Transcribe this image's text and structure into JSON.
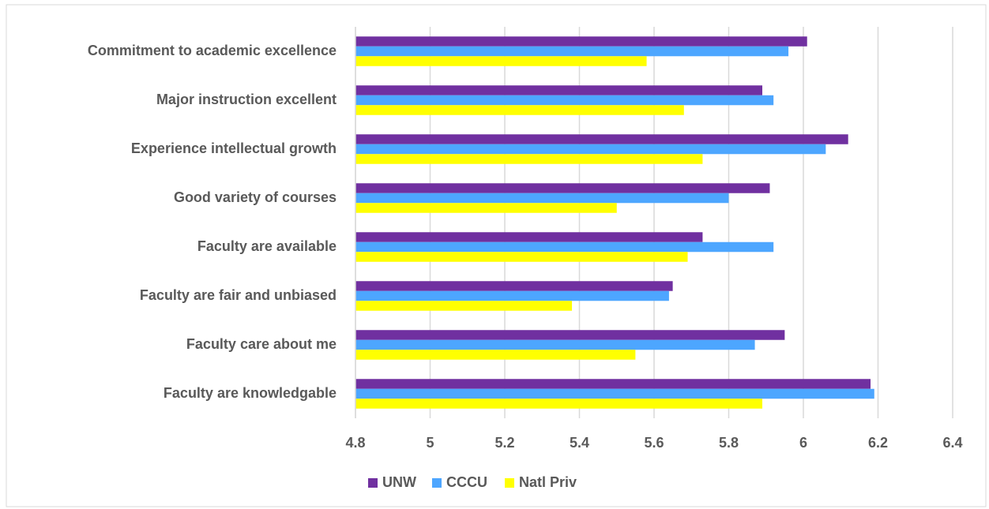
{
  "chart_data": {
    "type": "hbar",
    "categories": [
      "Commitment to academic excellence",
      "Major instruction excellent",
      "Experience intellectual growth",
      "Good variety of courses",
      "Faculty are available",
      "Faculty are fair and unbiased",
      "Faculty care about me",
      "Faculty are knowledgable"
    ],
    "series": [
      {
        "name": "UNW",
        "color": "#7030a0",
        "values": [
          6.01,
          5.89,
          6.12,
          5.91,
          5.73,
          5.65,
          5.95,
          6.18
        ]
      },
      {
        "name": "CCCU",
        "color": "#4da6ff",
        "values": [
          5.96,
          5.92,
          6.06,
          5.8,
          5.92,
          5.64,
          5.87,
          6.19
        ]
      },
      {
        "name": "Natl Priv",
        "color": "#ffff00",
        "values": [
          5.58,
          5.68,
          5.73,
          5.5,
          5.69,
          5.38,
          5.55,
          5.89
        ]
      }
    ],
    "xlim": [
      4.8,
      6.4
    ],
    "xticks": [
      4.8,
      5,
      5.2,
      5.4,
      5.6,
      5.8,
      6,
      6.2,
      6.4
    ],
    "grid": true,
    "legend": "bottom"
  }
}
